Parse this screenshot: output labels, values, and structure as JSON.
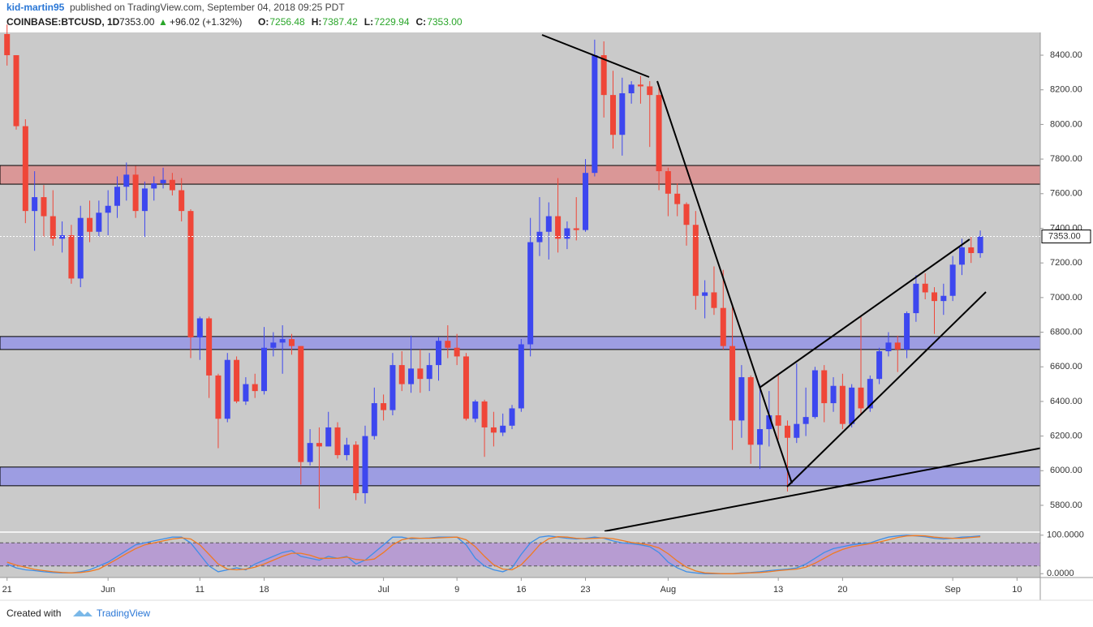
{
  "header": {
    "publisher": "kid-martin95",
    "published": "published on TradingView.com, September 04, 2018 09:25 PDT",
    "symbol": "COINBASE:BTCUSD, 1D",
    "last": "7353.00",
    "arrow": "▲",
    "change": "+96.02 (+1.32%)",
    "ohlc": [
      {
        "label": "O:",
        "value": "7256.48"
      },
      {
        "label": "H:",
        "value": "7387.42"
      },
      {
        "label": "L:",
        "value": "7229.94"
      },
      {
        "label": "C:",
        "value": "7353.00"
      }
    ]
  },
  "footer": {
    "created": "Created with",
    "brand": "TradingView"
  },
  "chart_data": [
    {
      "type": "candlestick",
      "categories": [
        "21",
        null,
        null,
        null,
        null,
        null,
        null,
        null,
        null,
        null,
        null,
        "Jun",
        null,
        null,
        null,
        null,
        null,
        null,
        null,
        null,
        null,
        "11",
        null,
        null,
        null,
        null,
        null,
        null,
        "18",
        null,
        null,
        null,
        null,
        null,
        null,
        null,
        null,
        null,
        null,
        null,
        null,
        "Jul",
        null,
        null,
        null,
        null,
        null,
        null,
        null,
        "9",
        null,
        null,
        null,
        null,
        null,
        null,
        "16",
        null,
        null,
        null,
        null,
        null,
        null,
        "23",
        null,
        null,
        null,
        null,
        null,
        null,
        null,
        null,
        "Aug",
        null,
        null,
        null,
        null,
        null,
        null,
        null,
        null,
        null,
        null,
        null,
        "13",
        null,
        null,
        null,
        null,
        null,
        null,
        "20",
        null,
        null,
        null,
        null,
        null,
        null,
        null,
        null,
        null,
        null,
        null,
        "Sep",
        null,
        null,
        null,
        null,
        null,
        null,
        "10"
      ],
      "open": [
        8522,
        8400,
        7990,
        7500,
        7580,
        7470,
        7340,
        7360,
        7110,
        7460,
        7380,
        7490,
        7530,
        7640,
        7710,
        7500,
        7630,
        7660,
        7680,
        7620,
        7500,
        6770,
        6880,
        6550,
        6300,
        6640,
        6400,
        6500,
        6460,
        6710,
        6740,
        6760,
        6720,
        6050,
        6160,
        6140,
        6250,
        6090,
        6150,
        5870,
        6200,
        6390,
        6350,
        6610,
        6500,
        6590,
        6530,
        6610,
        6750,
        6710,
        6660,
        6300,
        6400,
        6250,
        6220,
        6260,
        6360,
        6730,
        7320,
        7380,
        7470,
        7340,
        7400,
        7390,
        7720,
        8400,
        8170,
        7940,
        8180,
        8230,
        8220,
        8170,
        7730,
        7600,
        7540,
        7420,
        7010,
        7030,
        6940,
        6720,
        6290,
        6540,
        6150,
        6240,
        6320,
        6260,
        6190,
        6270,
        6310,
        6580,
        6390,
        6490,
        6270,
        6480,
        6360,
        6530,
        6690,
        6740,
        6700,
        6910,
        7080,
        7030,
        6980,
        7010,
        7190,
        7290,
        7256.48,
        null,
        null,
        null,
        null
      ],
      "high": [
        8577,
        8400,
        8030,
        7730,
        7650,
        7620,
        7440,
        7420,
        7530,
        7560,
        7560,
        7620,
        7700,
        7780,
        7760,
        7670,
        7700,
        7750,
        7720,
        7690,
        7510,
        6890,
        6890,
        6560,
        6680,
        6660,
        6540,
        6560,
        6830,
        6800,
        6840,
        6790,
        6720,
        6240,
        6250,
        6340,
        6280,
        6190,
        6170,
        6260,
        6480,
        6440,
        6680,
        6690,
        6780,
        6700,
        6680,
        6770,
        6840,
        6790,
        6680,
        6410,
        6410,
        6340,
        6330,
        6380,
        6760,
        7460,
        7580,
        7550,
        7690,
        7440,
        7580,
        7800,
        8490,
        8480,
        8310,
        8270,
        8250,
        8280,
        8250,
        8230,
        7750,
        7660,
        7550,
        7500,
        7100,
        7180,
        7160,
        6960,
        6610,
        6550,
        6500,
        6460,
        6550,
        6290,
        6620,
        6480,
        6600,
        6610,
        6540,
        6560,
        6500,
        6890,
        6550,
        6710,
        6800,
        6780,
        6920,
        7130,
        7140,
        7060,
        7080,
        7240,
        7340,
        7350,
        7387.42,
        null,
        null,
        null,
        null
      ],
      "low": [
        8340,
        7970,
        7430,
        7270,
        7350,
        7300,
        7260,
        7080,
        7060,
        7320,
        7350,
        7360,
        7460,
        7560,
        7460,
        7350,
        7560,
        7630,
        7590,
        7440,
        6650,
        6640,
        6420,
        6130,
        6280,
        6390,
        6380,
        6420,
        6440,
        6660,
        6560,
        6670,
        5920,
        6030,
        5780,
        6140,
        6070,
        6060,
        5830,
        5810,
        6180,
        6290,
        6320,
        6460,
        6450,
        6450,
        6460,
        6520,
        6650,
        6610,
        6290,
        6280,
        6080,
        6140,
        6200,
        6240,
        6340,
        6660,
        7240,
        7220,
        7260,
        7280,
        7330,
        7380,
        7700,
        8040,
        7860,
        7820,
        8120,
        8120,
        7870,
        7620,
        7470,
        7470,
        7300,
        6930,
        6880,
        6900,
        6700,
        6120,
        6190,
        6040,
        6010,
        6140,
        6180,
        5880,
        6160,
        6200,
        6300,
        6280,
        6340,
        6240,
        6250,
        6320,
        6340,
        6500,
        6660,
        6570,
        6650,
        6860,
        6990,
        6790,
        6900,
        6980,
        7130,
        7200,
        7229.94,
        null,
        null,
        null,
        null
      ],
      "close": [
        8400,
        7990,
        7500,
        7580,
        7470,
        7340,
        7360,
        7110,
        7460,
        7380,
        7490,
        7530,
        7640,
        7710,
        7500,
        7630,
        7660,
        7680,
        7620,
        7500,
        6770,
        6880,
        6550,
        6300,
        6640,
        6400,
        6500,
        6460,
        6710,
        6740,
        6760,
        6720,
        6050,
        6160,
        6140,
        6250,
        6090,
        6150,
        5870,
        6200,
        6390,
        6350,
        6610,
        6500,
        6590,
        6530,
        6610,
        6750,
        6710,
        6660,
        6300,
        6400,
        6250,
        6220,
        6260,
        6360,
        6730,
        7320,
        7380,
        7470,
        7340,
        7400,
        7390,
        7720,
        8400,
        8170,
        7940,
        8180,
        8230,
        8220,
        8170,
        7730,
        7600,
        7540,
        7420,
        7010,
        7030,
        6940,
        6720,
        6290,
        6540,
        6150,
        6240,
        6320,
        6260,
        6190,
        6270,
        6310,
        6580,
        6390,
        6490,
        6270,
        6480,
        6360,
        6530,
        6690,
        6740,
        6700,
        6910,
        7080,
        7030,
        6980,
        7010,
        7190,
        7290,
        7257,
        7353,
        null,
        null,
        null,
        null
      ],
      "up_color": "#3d47ef",
      "down_color": "#ef4638",
      "ylim": [
        5650,
        8522
      ],
      "yticks": [
        {
          "value": 5800,
          "label": "5800.00"
        },
        {
          "value": 6000,
          "label": "6000.00"
        },
        {
          "value": 6200,
          "label": "6200.00"
        },
        {
          "value": 6400,
          "label": "6400.00"
        },
        {
          "value": 6600,
          "label": "6600.00"
        },
        {
          "value": 6800,
          "label": "6800.00"
        },
        {
          "value": 7000,
          "label": "7000.00"
        },
        {
          "value": 7200,
          "label": "7200.00"
        },
        {
          "value": 7400,
          "label": "7400.00"
        },
        {
          "value": 7600,
          "label": "7600.00"
        },
        {
          "value": 7800,
          "label": "7800.00"
        },
        {
          "value": 8000,
          "label": "8000.00"
        },
        {
          "value": 8200,
          "label": "8200.00"
        },
        {
          "value": 8400,
          "label": "8400.00"
        }
      ],
      "zones": [
        {
          "range": [
            7655,
            7763
          ],
          "color": "rgba(232,110,110,0.55)"
        },
        {
          "range": [
            6700,
            6775
          ],
          "color": "rgba(120,120,245,0.55)"
        },
        {
          "range": [
            5913,
            6021
          ],
          "color": "rgba(120,120,245,0.55)"
        }
      ],
      "last_price": {
        "value": 7353,
        "label": "7353.00"
      }
    },
    {
      "type": "line",
      "series": [
        {
          "name": "%K",
          "color": "#3f8ee8",
          "values": [
            25,
            15,
            10,
            8,
            5,
            3,
            2,
            2,
            5,
            10,
            20,
            30,
            45,
            60,
            75,
            80,
            85,
            90,
            95,
            95,
            80,
            50,
            20,
            5,
            10,
            15,
            10,
            25,
            35,
            45,
            55,
            60,
            45,
            40,
            35,
            45,
            40,
            45,
            25,
            35,
            55,
            75,
            95,
            95,
            90,
            92,
            93,
            95,
            95,
            95,
            75,
            40,
            20,
            10,
            5,
            15,
            50,
            80,
            95,
            98,
            95,
            92,
            90,
            92,
            95,
            92,
            85,
            80,
            78,
            75,
            70,
            55,
            30,
            15,
            5,
            2,
            0,
            0,
            0,
            0,
            2,
            3,
            5,
            8,
            10,
            12,
            15,
            25,
            40,
            55,
            65,
            70,
            75,
            78,
            80,
            88,
            95,
            98,
            100,
            98,
            96,
            92,
            90,
            92,
            95,
            96,
            98
          ]
        },
        {
          "name": "%D",
          "color": "#f07a22",
          "values": [
            30,
            22,
            17,
            11,
            8,
            5,
            3,
            2,
            3,
            6,
            12,
            25,
            38,
            52,
            65,
            75,
            80,
            85,
            90,
            93,
            90,
            75,
            50,
            25,
            12,
            10,
            12,
            17,
            25,
            35,
            45,
            53,
            53,
            48,
            40,
            40,
            40,
            43,
            37,
            35,
            38,
            55,
            75,
            88,
            93,
            92,
            92,
            93,
            94,
            95,
            88,
            70,
            45,
            23,
            12,
            10,
            23,
            48,
            75,
            91,
            96,
            95,
            92,
            91,
            92,
            93,
            91,
            86,
            81,
            78,
            74,
            67,
            52,
            33,
            17,
            7,
            2,
            1,
            0,
            0,
            1,
            2,
            3,
            5,
            8,
            10,
            12,
            17,
            27,
            40,
            53,
            63,
            70,
            74,
            78,
            82,
            88,
            94,
            98,
            99,
            98,
            95,
            93,
            92,
            92,
            94,
            96
          ]
        }
      ],
      "ylim": [
        -10,
        108
      ],
      "yticks": [
        {
          "value": 0,
          "label": "0.0000"
        },
        {
          "value": 100,
          "label": "100.0000"
        }
      ],
      "band": [
        20,
        80
      ],
      "band_color": "rgba(160,100,220,0.45)"
    }
  ]
}
